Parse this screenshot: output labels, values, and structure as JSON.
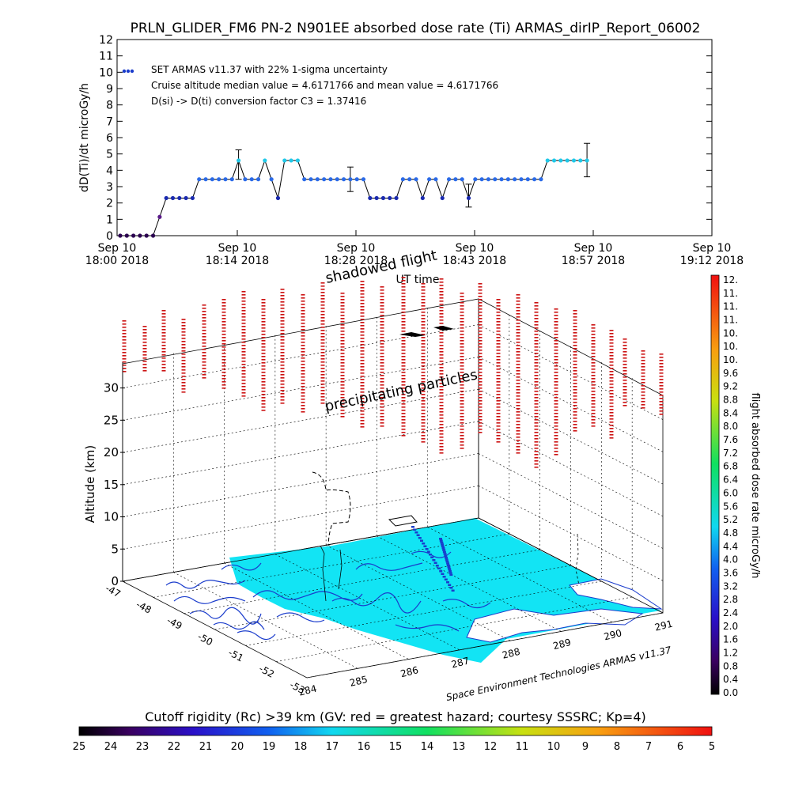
{
  "chart_data": [
    {
      "type": "scatter",
      "title": "PRLN_GLIDER_FM6 PN-2 N901EE absorbed dose rate (Ti) ARMAS_dirIP_Report_06002",
      "ylabel": "dD(Ti)/dt microGy/h",
      "xlabel": "UT time",
      "ylim": [
        0,
        12
      ],
      "xlim_minutes": [
        0,
        72
      ],
      "x_tick_labels": [
        [
          "Sep 10",
          "18:00 2018"
        ],
        [
          "Sep 10",
          "18:14 2018"
        ],
        [
          "Sep 10",
          "18:28 2018"
        ],
        [
          "Sep 10",
          "18:43 2018"
        ],
        [
          "Sep 10",
          "18:57 2018"
        ],
        [
          "Sep 10",
          "19:12 2018"
        ]
      ],
      "y_ticks": [
        0,
        1,
        2,
        3,
        4,
        5,
        6,
        7,
        8,
        9,
        10,
        11,
        12
      ],
      "annotations": [
        "SET ARMAS v11.37 with 22% 1-sigma uncertainty",
        "Cruise altitude median value = 4.6171766 and mean value = 4.6171766",
        "D(si) -> D(ti) conversion factor C3 = 1.37416"
      ],
      "points": [
        {
          "t": 0.0,
          "v": 0.0
        },
        {
          "t": 0.8,
          "v": 0.0
        },
        {
          "t": 1.6,
          "v": 0.0
        },
        {
          "t": 2.4,
          "v": 0.0
        },
        {
          "t": 3.2,
          "v": 0.0
        },
        {
          "t": 4.0,
          "v": 0.0
        },
        {
          "t": 4.8,
          "v": 1.15
        },
        {
          "t": 5.6,
          "v": 2.3
        },
        {
          "t": 6.4,
          "v": 2.3
        },
        {
          "t": 7.2,
          "v": 2.3
        },
        {
          "t": 8.0,
          "v": 2.3
        },
        {
          "t": 8.8,
          "v": 2.3
        },
        {
          "t": 9.6,
          "v": 3.45
        },
        {
          "t": 10.4,
          "v": 3.45
        },
        {
          "t": 11.2,
          "v": 3.45
        },
        {
          "t": 12.0,
          "v": 3.45
        },
        {
          "t": 12.8,
          "v": 3.45
        },
        {
          "t": 13.6,
          "v": 3.45
        },
        {
          "t": 14.4,
          "v": 4.6
        },
        {
          "t": 15.2,
          "v": 3.45
        },
        {
          "t": 16.0,
          "v": 3.45
        },
        {
          "t": 16.8,
          "v": 3.45
        },
        {
          "t": 17.6,
          "v": 4.6
        },
        {
          "t": 18.4,
          "v": 3.45
        },
        {
          "t": 19.2,
          "v": 2.3
        },
        {
          "t": 20.0,
          "v": 4.6
        },
        {
          "t": 20.8,
          "v": 4.6
        },
        {
          "t": 21.6,
          "v": 4.6
        },
        {
          "t": 22.4,
          "v": 3.45
        },
        {
          "t": 23.2,
          "v": 3.45
        },
        {
          "t": 24.0,
          "v": 3.45
        },
        {
          "t": 24.8,
          "v": 3.45
        },
        {
          "t": 25.6,
          "v": 3.45
        },
        {
          "t": 26.4,
          "v": 3.45
        },
        {
          "t": 27.2,
          "v": 3.45
        },
        {
          "t": 28.0,
          "v": 3.45
        },
        {
          "t": 28.8,
          "v": 3.45
        },
        {
          "t": 29.6,
          "v": 3.45
        },
        {
          "t": 30.4,
          "v": 2.3
        },
        {
          "t": 31.2,
          "v": 2.3
        },
        {
          "t": 32.0,
          "v": 2.3
        },
        {
          "t": 32.8,
          "v": 2.3
        },
        {
          "t": 33.6,
          "v": 2.3
        },
        {
          "t": 34.4,
          "v": 3.45
        },
        {
          "t": 35.2,
          "v": 3.45
        },
        {
          "t": 36.0,
          "v": 3.45
        },
        {
          "t": 36.8,
          "v": 2.3
        },
        {
          "t": 37.6,
          "v": 3.45
        },
        {
          "t": 38.4,
          "v": 3.45
        },
        {
          "t": 39.2,
          "v": 2.3
        },
        {
          "t": 40.0,
          "v": 3.45
        },
        {
          "t": 40.8,
          "v": 3.45
        },
        {
          "t": 41.6,
          "v": 3.45
        },
        {
          "t": 42.4,
          "v": 2.3
        },
        {
          "t": 43.2,
          "v": 3.45
        },
        {
          "t": 44.0,
          "v": 3.45
        },
        {
          "t": 44.8,
          "v": 3.45
        },
        {
          "t": 45.6,
          "v": 3.45
        },
        {
          "t": 46.4,
          "v": 3.45
        },
        {
          "t": 47.2,
          "v": 3.45
        },
        {
          "t": 48.0,
          "v": 3.45
        },
        {
          "t": 48.8,
          "v": 3.45
        },
        {
          "t": 49.6,
          "v": 3.45
        },
        {
          "t": 50.4,
          "v": 3.45
        },
        {
          "t": 51.2,
          "v": 3.45
        },
        {
          "t": 52.0,
          "v": 4.6
        },
        {
          "t": 52.8,
          "v": 4.6
        },
        {
          "t": 53.6,
          "v": 4.6
        },
        {
          "t": 54.4,
          "v": 4.6
        },
        {
          "t": 55.2,
          "v": 4.6
        },
        {
          "t": 56.0,
          "v": 4.6
        },
        {
          "t": 56.8,
          "v": 4.6
        }
      ],
      "error_bars": [
        {
          "t": 14.4,
          "low": 3.45,
          "high": 5.25
        },
        {
          "t": 28.0,
          "low": 2.7,
          "high": 4.2
        },
        {
          "t": 42.4,
          "low": 1.75,
          "high": 3.15
        },
        {
          "t": 56.8,
          "low": 3.6,
          "high": 5.65
        }
      ]
    },
    {
      "type": "scatter",
      "zlabel": "Altitude (km)",
      "z_ticks": [
        0,
        5,
        10,
        15,
        20,
        25,
        30
      ],
      "lat_ticks": [
        "-47",
        "-48",
        "-49",
        "-50",
        "-51",
        "-52",
        "-53"
      ],
      "lon_ticks": [
        "284",
        "285",
        "286",
        "287",
        "288",
        "289",
        "290",
        "291"
      ],
      "annotations": [
        "shadowed flight",
        "precipitating particles"
      ],
      "credit": "Space Environment Technologies ARMAS v11.37"
    }
  ],
  "colorbar_right": {
    "label": "flight absorbed dose rate microGy/h",
    "ticks": [
      "12.",
      "11.",
      "11.",
      "11.",
      "10.",
      "10.",
      "10.",
      "9.6",
      "9.2",
      "8.8",
      "8.4",
      "8.0",
      "7.6",
      "7.2",
      "6.8",
      "6.4",
      "6.0",
      "5.6",
      "5.2",
      "4.8",
      "4.4",
      "4.0",
      "3.6",
      "3.2",
      "2.8",
      "2.4",
      "2.0",
      "1.6",
      "1.2",
      "0.8",
      "0.4",
      "0.0"
    ]
  },
  "colorbar_bottom": {
    "label": "Cutoff rigidity (Rc) >39 km (GV: red = greatest hazard; courtesy SSSRC; Kp=4)",
    "ticks": [
      "25",
      "24",
      "23",
      "22",
      "21",
      "20",
      "19",
      "18",
      "17",
      "16",
      "15",
      "14",
      "13",
      "12",
      "11",
      "10",
      "9",
      "8",
      "7",
      "6",
      "5"
    ]
  },
  "colors": {
    "line": "#000000",
    "grid": "#000000",
    "ocean": "#12e4f4",
    "coast": "#1a3ccc",
    "particles": "#cc1111"
  }
}
